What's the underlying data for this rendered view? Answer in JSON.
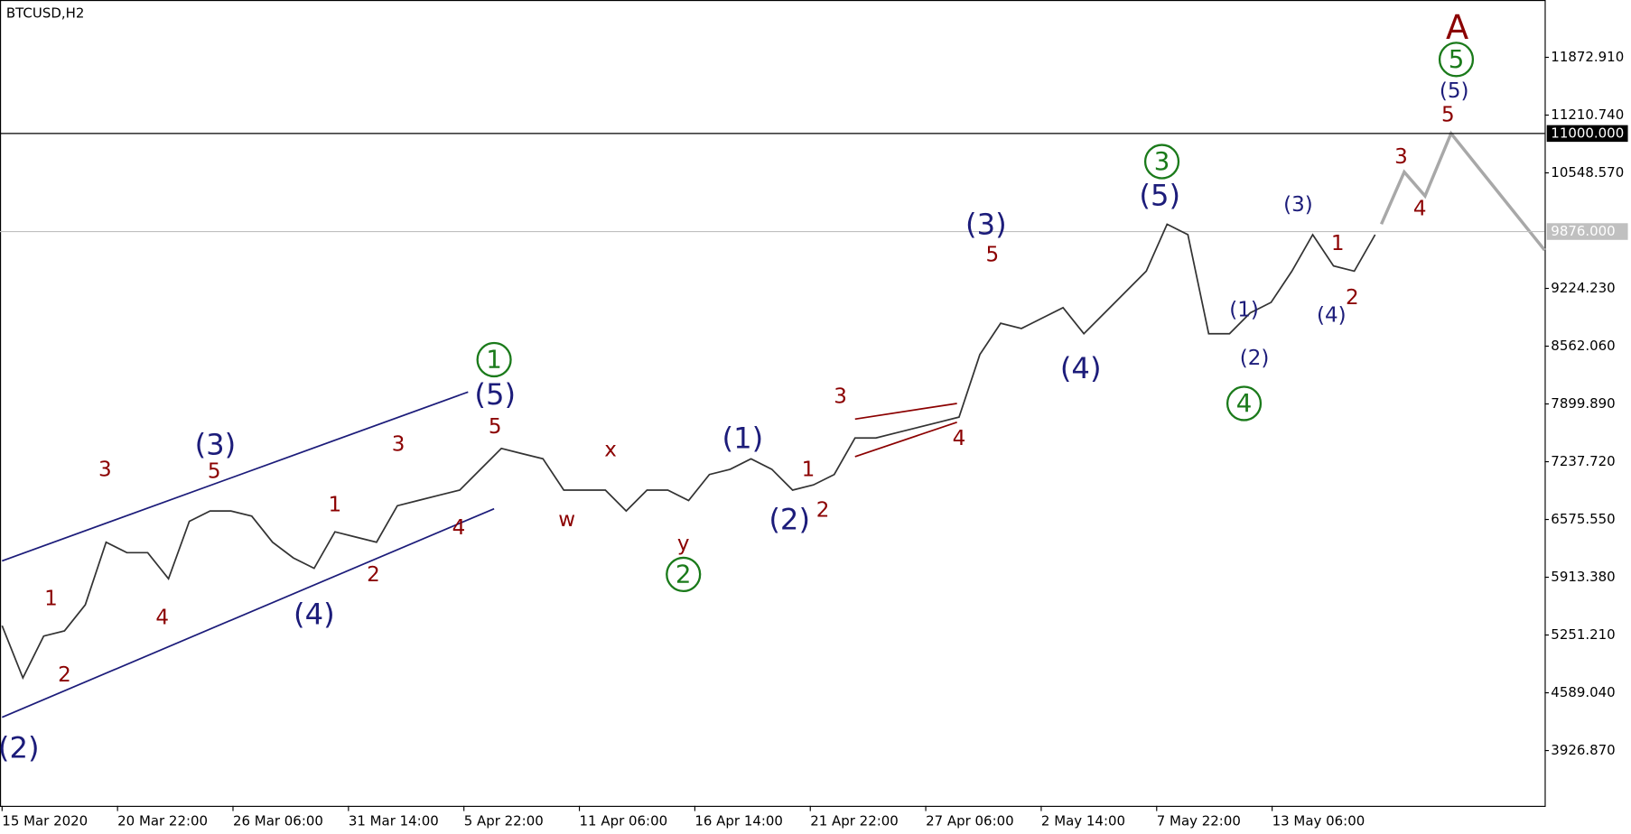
{
  "chart_data": {
    "type": "line",
    "title": "BTCUSD,H2",
    "color": "#333333",
    "values": [
      5358,
      4760,
      5239,
      5299,
      5598,
      6315,
      6195,
      6195,
      5896,
      6554,
      6673,
      6673,
      6614,
      6315,
      6135,
      6016,
      6434,
      6374,
      6315,
      6733,
      6793,
      6853,
      6912,
      7151,
      7390,
      7330,
      7271,
      6912,
      6912,
      6912,
      6673,
      6912,
      6912,
      6793,
      7091,
      7151,
      7271,
      7151,
      6912,
      6972,
      7091,
      7510,
      7510,
      7570,
      7629,
      7689,
      7749,
      8466,
      8825,
      8765,
      8884,
      9004,
      8705,
      8944,
      9183,
      9422,
      9960,
      9840,
      8705,
      8705,
      8944,
      9064,
      9422,
      9840,
      9482,
      9422,
      9840
    ],
    "x_tick_labels": [
      "15 Mar 2020",
      "20 Mar 22:00",
      "26 Mar 06:00",
      "31 Mar 14:00",
      "5 Apr 22:00",
      "11 Apr 06:00",
      "16 Apr 14:00",
      "21 Apr 22:00",
      "27 Apr 06:00",
      "2 May 14:00",
      "7 May 22:00",
      "13 May 06:00"
    ],
    "ylim": [
      3293,
      12530
    ],
    "yticks": [
      {
        "value": 11872.91,
        "label": "11872.910"
      },
      {
        "value": 11210.74,
        "label": "11210.740"
      },
      {
        "value": 10548.57,
        "label": "10548.570"
      },
      {
        "value": 9224.23,
        "label": "9224.230"
      },
      {
        "value": 8562.06,
        "label": "8562.060"
      },
      {
        "value": 7899.89,
        "label": "7899.890"
      },
      {
        "value": 7237.72,
        "label": "7237.720"
      },
      {
        "value": 6575.55,
        "label": "6575.550"
      },
      {
        "value": 5913.38,
        "label": "5913.380"
      },
      {
        "value": 5251.21,
        "label": "5251.210"
      },
      {
        "value": 4589.04,
        "label": "4589.040"
      },
      {
        "value": 3926.87,
        "label": "3926.870"
      }
    ],
    "levels": [
      {
        "value": 11000,
        "label": "11000.000",
        "color": "#000000"
      },
      {
        "value": 9876,
        "label": "9876.000",
        "color": "#c0c0c0"
      }
    ],
    "annotations": [
      {
        "text": "(2)",
        "color": "#1c1c7a"
      },
      {
        "text": "(3)",
        "color": "#1c1c7a"
      },
      {
        "text": "(4)",
        "color": "#1c1c7a"
      },
      {
        "text": "(5)",
        "color": "#1c1c7a"
      },
      {
        "text": "(1)",
        "color": "#1c1c7a"
      },
      {
        "text": "(2)",
        "color": "#1c1c7a"
      },
      {
        "text": "(3)",
        "color": "#1c1c7a"
      },
      {
        "text": "(4)",
        "color": "#1c1c7a"
      },
      {
        "text": "(5)",
        "color": "#1c1c7a"
      },
      {
        "text": "(1)",
        "color": "#1c1c7a"
      },
      {
        "text": "(2)",
        "color": "#1c1c7a"
      },
      {
        "text": "(3)",
        "color": "#1c1c7a"
      },
      {
        "text": "(4)",
        "color": "#1c1c7a"
      },
      {
        "text": "(5)",
        "color": "#1c1c7a"
      },
      {
        "text": "1",
        "color": "#8b0000"
      },
      {
        "text": "2",
        "color": "#8b0000"
      },
      {
        "text": "3",
        "color": "#8b0000"
      },
      {
        "text": "4",
        "color": "#8b0000"
      },
      {
        "text": "5",
        "color": "#8b0000"
      },
      {
        "text": "1",
        "color": "#8b0000"
      },
      {
        "text": "2",
        "color": "#8b0000"
      },
      {
        "text": "3",
        "color": "#8b0000"
      },
      {
        "text": "4",
        "color": "#8b0000"
      },
      {
        "text": "5",
        "color": "#8b0000"
      },
      {
        "text": "w",
        "color": "#8b0000"
      },
      {
        "text": "x",
        "color": "#8b0000"
      },
      {
        "text": "y",
        "color": "#8b0000"
      },
      {
        "text": "1",
        "color": "#8b0000"
      },
      {
        "text": "2",
        "color": "#8b0000"
      },
      {
        "text": "3",
        "color": "#8b0000"
      },
      {
        "text": "4",
        "color": "#8b0000"
      },
      {
        "text": "5",
        "color": "#8b0000"
      },
      {
        "text": "1",
        "color": "#8b0000"
      },
      {
        "text": "2",
        "color": "#8b0000"
      },
      {
        "text": "3",
        "color": "#8b0000"
      },
      {
        "text": "4",
        "color": "#8b0000"
      },
      {
        "text": "5",
        "color": "#8b0000"
      },
      {
        "text": "A",
        "color": "#8b0000"
      },
      {
        "text": "1",
        "color": "#1a7a1a",
        "circled": true
      },
      {
        "text": "2",
        "color": "#1a7a1a",
        "circled": true
      },
      {
        "text": "3",
        "color": "#1a7a1a",
        "circled": true
      },
      {
        "text": "4",
        "color": "#1a7a1a",
        "circled": true
      },
      {
        "text": "5",
        "color": "#1a7a1a",
        "circled": true
      }
    ]
  }
}
